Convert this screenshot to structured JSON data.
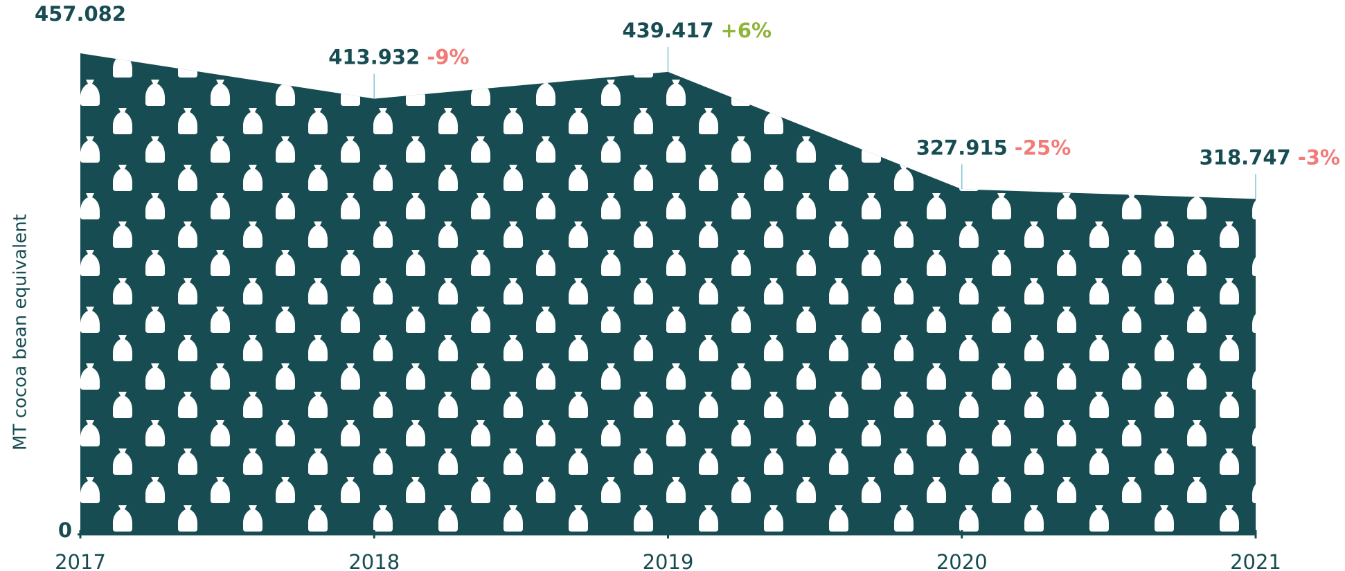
{
  "chart_data": {
    "type": "area",
    "y_label": "MT cocoa bean equivalent",
    "categories": [
      "2017",
      "2018",
      "2019",
      "2020",
      "2021"
    ],
    "values": [
      457082,
      413932,
      439417,
      327915,
      318747
    ],
    "value_labels": [
      "457.082",
      "413.932",
      "439.417",
      "327.915",
      "318.747"
    ],
    "change_labels": [
      null,
      "-9%",
      "+6%",
      "-25%",
      "-3%"
    ],
    "change_colors": [
      null,
      "#f07b78",
      "#8fb43a",
      "#f07b78",
      "#f07b78"
    ],
    "color": "#174d52",
    "ylim": [
      0,
      457082
    ],
    "yticks": [
      0
    ]
  }
}
